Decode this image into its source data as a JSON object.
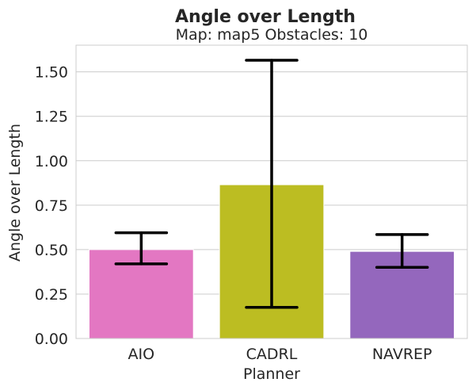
{
  "chart_data": {
    "type": "bar",
    "title": "Angle over Length",
    "subtitle": "Map: map5 Obstacles: 10",
    "xlabel": "Planner",
    "ylabel": "Angle over Length",
    "categories": [
      "AIO",
      "CADRL",
      "NAVREP"
    ],
    "values": [
      0.5,
      0.865,
      0.49
    ],
    "error_low": [
      0.42,
      0.175,
      0.4
    ],
    "error_high": [
      0.595,
      1.565,
      0.585
    ],
    "colors": [
      "#e377c2",
      "#bcbd22",
      "#9467bd"
    ],
    "ylim": [
      0,
      1.65
    ],
    "yticks": [
      0.0,
      0.25,
      0.5,
      0.75,
      1.0,
      1.25,
      1.5
    ],
    "ytick_labels": [
      "0.00",
      "0.25",
      "0.50",
      "0.75",
      "1.00",
      "1.25",
      "1.50"
    ],
    "grid": "horizontal",
    "legend": "none"
  }
}
